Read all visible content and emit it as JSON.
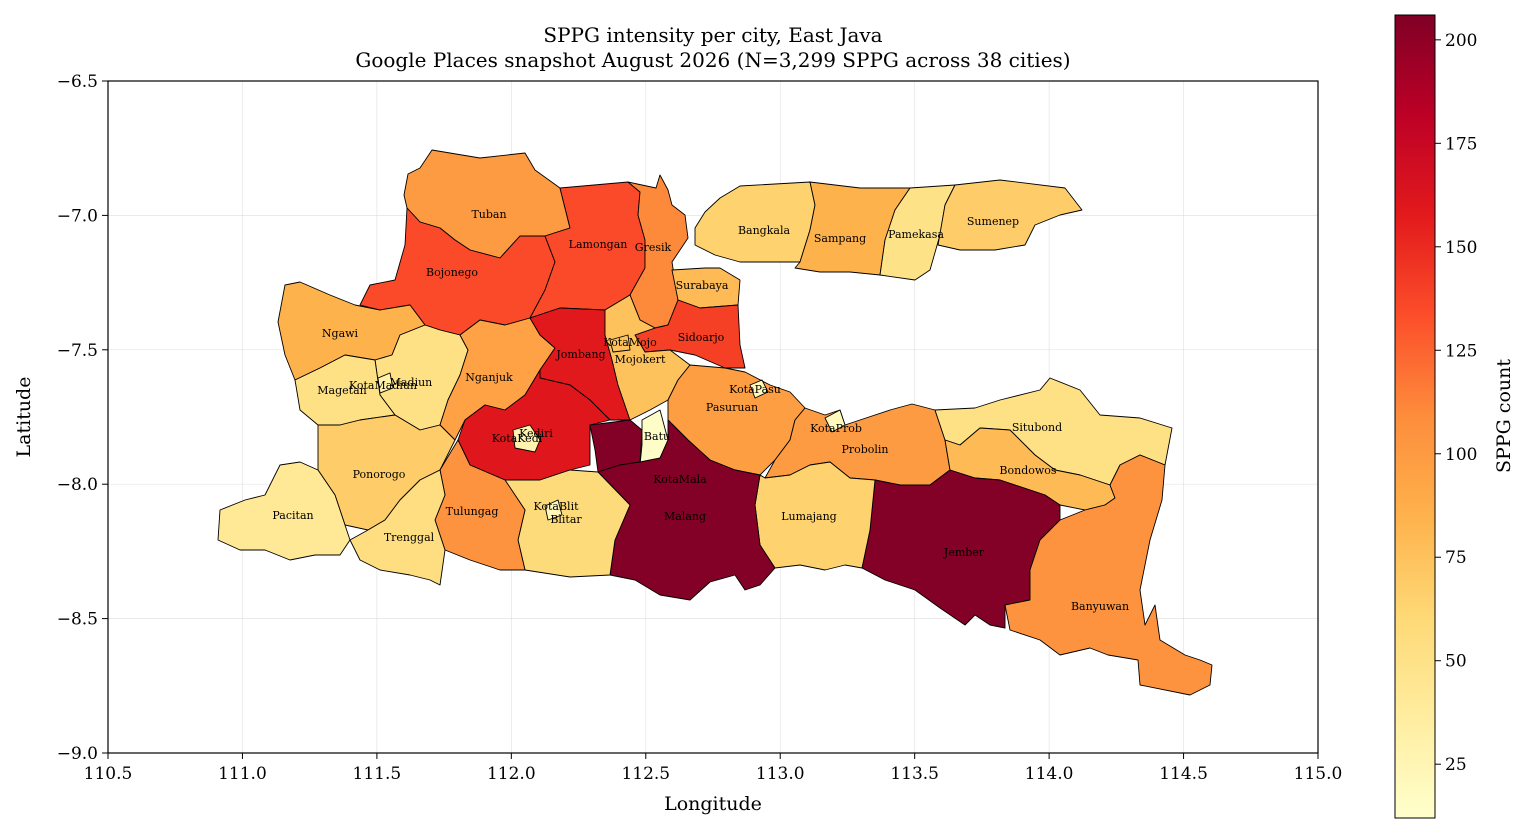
{
  "chart_data": {
    "type": "choropleth",
    "title": "SPPG intensity per city, East Java",
    "subtitle": "Google Places snapshot August 2026 (N=3,299 SPPG across 38 cities)",
    "xlabel": "Longitude",
    "ylabel": "Latitude",
    "xlim": [
      110.5,
      115.0
    ],
    "ylim": [
      -9.0,
      -6.5
    ],
    "xticks": [
      "110.5",
      "111.0",
      "111.5",
      "112.0",
      "112.5",
      "113.0",
      "113.5",
      "114.0",
      "114.5",
      "115.0"
    ],
    "yticks": [
      "−6.5",
      "−7.0",
      "−7.5",
      "−8.0",
      "−8.5",
      "−9.0"
    ],
    "grid": true,
    "colormap": "YlOrRd",
    "colorbar": {
      "label": "SPPG count",
      "range": [
        12,
        206
      ],
      "ticks": [
        "25",
        "50",
        "75",
        "100",
        "125",
        "150",
        "175",
        "200"
      ],
      "position": "right"
    },
    "regions": [
      {
        "label": "Tuban",
        "value": 100
      },
      {
        "label": "Lamongan",
        "value": 135
      },
      {
        "label": "Gresik",
        "value": 110
      },
      {
        "label": "Bojonego",
        "value": 135
      },
      {
        "label": "Bangkala",
        "value": 65
      },
      {
        "label": "Sampang",
        "value": 85
      },
      {
        "label": "Pamekasa",
        "value": 50
      },
      {
        "label": "Sumenep",
        "value": 68
      },
      {
        "label": "Surabaya",
        "value": 80
      },
      {
        "label": "Ngawi",
        "value": 85
      },
      {
        "label": "Sidoarjo",
        "value": 140
      },
      {
        "label": "Jombang",
        "value": 158
      },
      {
        "label": "KotaMojo",
        "value": 75
      },
      {
        "label": "Mojokert",
        "value": 75
      },
      {
        "label": "KotaMadiun",
        "value": 30
      },
      {
        "label": "Magetan",
        "value": 52
      },
      {
        "label": "Madiun",
        "value": 52
      },
      {
        "label": "Nganjuk",
        "value": 95
      },
      {
        "label": "KotaPasu",
        "value": 20
      },
      {
        "label": "Pasuruan",
        "value": 98
      },
      {
        "label": "KotaProb",
        "value": 20
      },
      {
        "label": "Situbond",
        "value": 52
      },
      {
        "label": "Kediri",
        "value": 160
      },
      {
        "label": "KotaKedi",
        "value": 28
      },
      {
        "label": "Batu",
        "value": 15
      },
      {
        "label": "Probolin",
        "value": 100
      },
      {
        "label": "Bondowos",
        "value": 80
      },
      {
        "label": "Ponorogo",
        "value": 68
      },
      {
        "label": "KotaMala",
        "value": 205
      },
      {
        "label": "Pacitan",
        "value": 42
      },
      {
        "label": "Tulungag",
        "value": 105
      },
      {
        "label": "KotaBlit",
        "value": 22
      },
      {
        "label": "Blitar",
        "value": 58
      },
      {
        "label": "Malang",
        "value": 205
      },
      {
        "label": "Lumajang",
        "value": 65
      },
      {
        "label": "Jember",
        "value": 205
      },
      {
        "label": "Trenggal",
        "value": 55
      },
      {
        "label": "Banyuwan",
        "value": 105
      }
    ]
  }
}
